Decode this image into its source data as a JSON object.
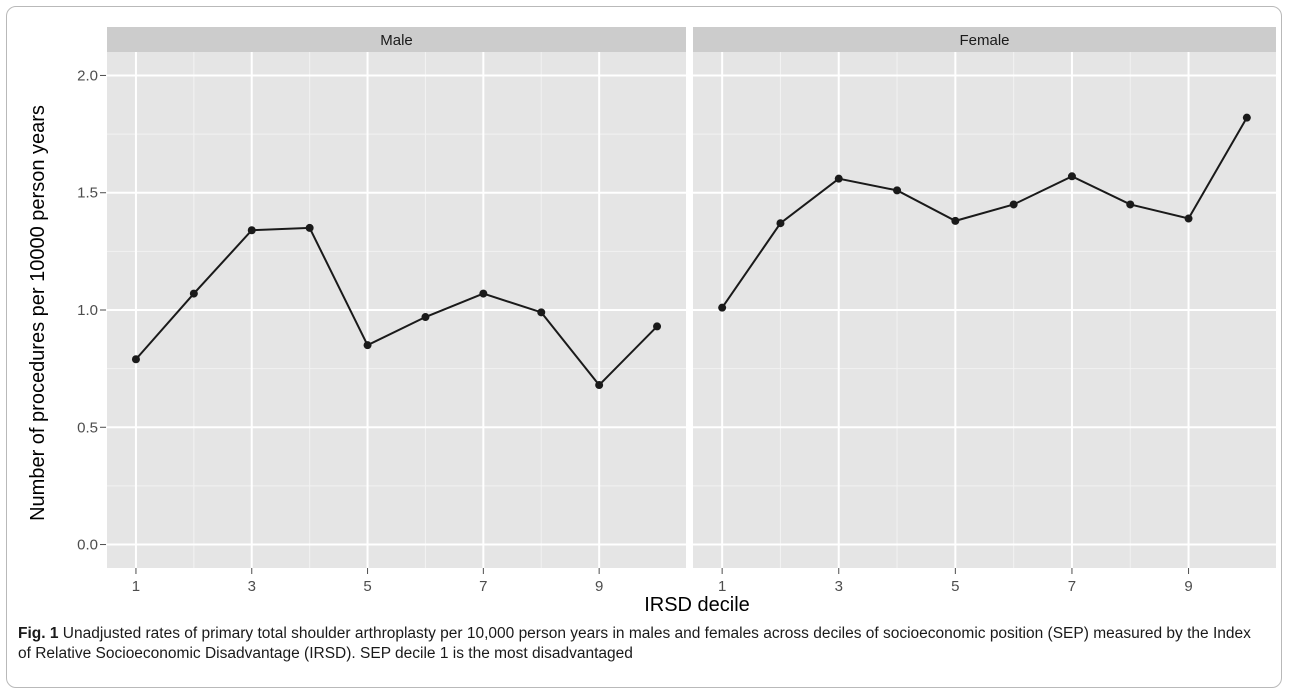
{
  "chart_data": {
    "type": "line",
    "facet_by": "sex",
    "xlabel": "IRSD decile",
    "ylabel": "Number of procedures per 10000 person years",
    "x": [
      1,
      2,
      3,
      4,
      5,
      6,
      7,
      8,
      9,
      10
    ],
    "xticks": [
      "1",
      "3",
      "5",
      "7",
      "9"
    ],
    "xtick_values": [
      1,
      3,
      5,
      7,
      9
    ],
    "ylim": [
      -0.1,
      2.1
    ],
    "yticks": [
      "0.0",
      "0.5",
      "1.0",
      "1.5",
      "2.0"
    ],
    "ytick_values": [
      0.0,
      0.5,
      1.0,
      1.5,
      2.0
    ],
    "grid": true,
    "panels": [
      {
        "name": "Male",
        "values": [
          0.79,
          1.07,
          1.34,
          1.35,
          0.85,
          0.97,
          1.07,
          0.99,
          0.68,
          0.93
        ]
      },
      {
        "name": "Female",
        "values": [
          1.01,
          1.37,
          1.56,
          1.51,
          1.38,
          1.45,
          1.57,
          1.45,
          1.39,
          1.82
        ]
      }
    ]
  },
  "caption": {
    "label": "Fig. 1",
    "text": " Unadjusted rates of primary total shoulder arthroplasty per 10,000 person years in males and females across deciles of socioeconomic position (SEP) measured by the Index of Relative Socioeconomic Disadvantage (IRSD). SEP decile 1 is the most disadvantaged"
  },
  "colors": {
    "panel_bg": "#e5e5e5",
    "strip_bg": "#cccccc",
    "grid": "#ffffff",
    "line": "#1a1a1a"
  }
}
